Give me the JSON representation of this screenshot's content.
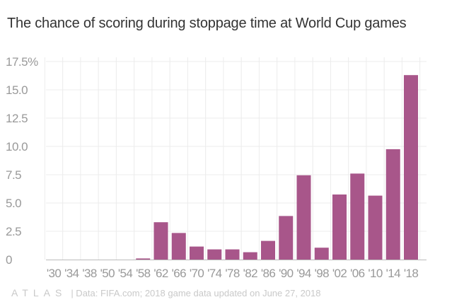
{
  "title": "The chance of scoring during stoppage time at World Cup games",
  "footer": {
    "logo": "ATLAS",
    "source": "| Data: FIFA.com; 2018 game data updated on June 27, 2018"
  },
  "colors": {
    "bar": "#a8568a",
    "grid": "#ececec",
    "axis": "#bbbbbb",
    "tick_label": "#999999"
  },
  "chart_data": {
    "type": "bar",
    "title": "The chance of scoring during stoppage time at World Cup games",
    "xlabel": "",
    "ylabel": "",
    "categories": [
      "'30",
      "'34",
      "'38",
      "'50",
      "'54",
      "'58",
      "'62",
      "'66",
      "'70",
      "'74",
      "'78",
      "'82",
      "'86",
      "'90",
      "'94",
      "'98",
      "'02",
      "'06",
      "'10",
      "'14",
      "'18"
    ],
    "values": [
      0,
      0,
      0,
      0,
      0,
      0.1,
      3.3,
      2.35,
      1.15,
      0.9,
      0.9,
      0.65,
      1.65,
      3.85,
      7.45,
      1.05,
      5.75,
      7.6,
      5.65,
      9.75,
      16.3
    ],
    "ylim": [
      0,
      17.5
    ],
    "y_ticks": [
      0,
      2.5,
      5,
      7.5,
      10,
      12.5,
      15,
      17.5
    ],
    "y_tick_labels": [
      "0",
      "2.5",
      "5.0",
      "7.5",
      "10.0",
      "12.5",
      "15.0",
      "17.5%"
    ],
    "grid": true,
    "legend": "none"
  }
}
